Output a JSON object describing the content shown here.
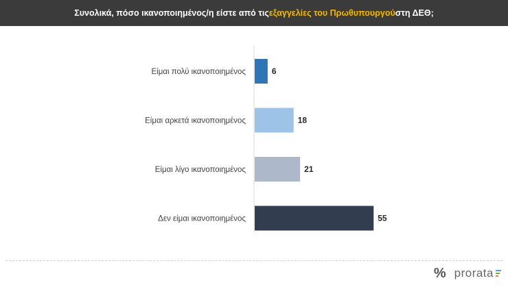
{
  "header": {
    "title_pre": "Συνολικά, πόσο ικανοποιημένος/η είστε από τις ",
    "title_highlight": "εξαγγελίες του Πρωθυπουργού",
    "title_post": " στη ΔΕΘ;",
    "highlight_color": "#f5b800"
  },
  "chart_data": {
    "type": "bar",
    "orientation": "horizontal",
    "categories": [
      "Είμαι πολύ ικανοποιημένος",
      "Είμαι αρκετά ικανοποιημένος",
      "Είμαι λίγο ικανοποιημένος",
      "Δεν είμαι ικανοποιημένος"
    ],
    "values": [
      6,
      18,
      21,
      55
    ],
    "colors": [
      "#2e75b6",
      "#9dc3e6",
      "#adb9ca",
      "#323e4f"
    ],
    "xlim": [
      0,
      100
    ],
    "grid": false,
    "data_labels": true
  },
  "logo": {
    "symbol": "%",
    "text": "prorata",
    "bar_colors": [
      "#5b9bd5",
      "#70ad47",
      "#ed7d31"
    ]
  }
}
